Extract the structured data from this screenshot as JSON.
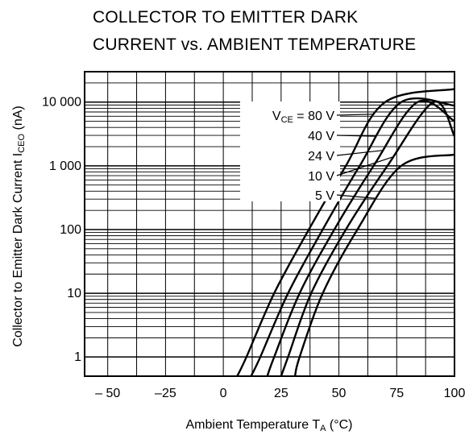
{
  "chart_data": {
    "type": "line",
    "title_lines": [
      "COLLECTOR TO EMITTER DARK",
      "CURRENT vs. AMBIENT TEMPERATURE"
    ],
    "xlabel": {
      "main": "Ambient Temperature  T",
      "sub": "A",
      "unit": " (°C)"
    },
    "ylabel": {
      "main": "Collector to Emitter Dark Current  I",
      "sub": "CEO",
      "unit": " (nA)"
    },
    "xlim": [
      -60,
      100
    ],
    "ylim": [
      0.5,
      30000
    ],
    "yscale": "log",
    "grid": true,
    "x_ticks": [
      -50,
      -25,
      0,
      25,
      50,
      75,
      100
    ],
    "x_tick_labels": [
      "– 50",
      "–25",
      "0",
      "25",
      "50",
      "75",
      "100"
    ],
    "y_ticks": [
      1,
      10,
      100,
      1000,
      10000
    ],
    "y_tick_labels": [
      "1",
      "10",
      "100",
      "1 000",
      "10 000"
    ],
    "series": [
      {
        "name": "V",
        "name_sub": "CE",
        "name_rest": " = 80 V",
        "values": [
          [
            6,
            0.5
          ],
          [
            10,
            1
          ],
          [
            22,
            10
          ],
          [
            37,
            100
          ],
          [
            53,
            1000
          ],
          [
            70,
            10000
          ],
          [
            100,
            16000
          ]
        ]
      },
      {
        "name": "40 V",
        "values": [
          [
            12,
            0.5
          ],
          [
            16,
            1
          ],
          [
            28,
            10
          ],
          [
            43,
            100
          ],
          [
            59,
            1000
          ],
          [
            77,
            10000
          ],
          [
            100,
            8800
          ]
        ]
      },
      {
        "name": "24 V",
        "values": [
          [
            19,
            0.5
          ],
          [
            22,
            1
          ],
          [
            33,
            10
          ],
          [
            48,
            100
          ],
          [
            65,
            1000
          ],
          [
            84,
            10000
          ],
          [
            100,
            5000
          ]
        ]
      },
      {
        "name": "10 V",
        "values": [
          [
            25,
            0.5
          ],
          [
            28,
            1
          ],
          [
            38,
            10
          ],
          [
            53,
            100
          ],
          [
            71,
            1000
          ],
          [
            91,
            10000
          ],
          [
            100,
            2900
          ]
        ]
      },
      {
        "name": "5 V",
        "values": [
          [
            31,
            0.5
          ],
          [
            33,
            1
          ],
          [
            43,
            10
          ],
          [
            58,
            100
          ],
          [
            77,
            1000
          ],
          [
            100,
            1500
          ]
        ]
      }
    ]
  }
}
